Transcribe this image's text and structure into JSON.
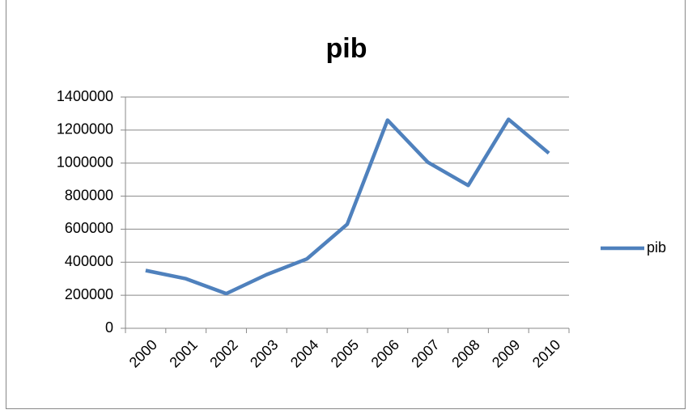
{
  "chart_data": {
    "type": "line",
    "title": "pib",
    "categories": [
      "2000",
      "2001",
      "2002",
      "2003",
      "2004",
      "2005",
      "2006",
      "2007",
      "2008",
      "2009",
      "2010"
    ],
    "series": [
      {
        "name": "pib",
        "color": "#4f81bd",
        "values": [
          350000,
          300000,
          210000,
          325000,
          420000,
          630000,
          1260000,
          1005000,
          865000,
          1265000,
          1060000
        ]
      }
    ],
    "ylim": [
      0,
      1400000
    ],
    "yticks": [
      0,
      200000,
      400000,
      600000,
      800000,
      1000000,
      1200000,
      1400000
    ],
    "grid": true,
    "legend": "right"
  }
}
